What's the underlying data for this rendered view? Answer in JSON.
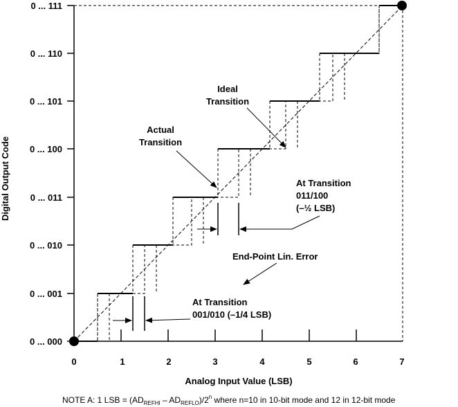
{
  "axes": {
    "x_label": "Analog Input Value (LSB)",
    "y_label": "Digital Output Code",
    "x_ticks": [
      "0",
      "1",
      "2",
      "3",
      "4",
      "5",
      "6",
      "7"
    ],
    "y_ticks": [
      "0 ... 000",
      "0 ... 001",
      "0 ... 010",
      "0 ... 011",
      "0 ... 100",
      "0 ... 101",
      "0 ... 110",
      "0 ... 111"
    ]
  },
  "annotations": {
    "ideal_line1": "Ideal",
    "ideal_line2": "Transition",
    "actual_line1": "Actual",
    "actual_line2": "Transition",
    "at_trans_011_line1": "At Transition",
    "at_trans_011_line2": "011/100",
    "at_trans_011_line3": "(–½ LSB)",
    "endpoint": "End-Point Lin. Error",
    "at_trans_001_line1": "At Transition",
    "at_trans_001_line2": "001/010 (–1/4 LSB)"
  },
  "note": {
    "prefix": "NOTE A:  1 LSB = (AD",
    "sub1": "REFHI",
    "mid": " – AD",
    "sub2": "REFLO",
    "mid2": ")/2",
    "sup": "n",
    "suffix": " where n=10 in 10-bit mode and 12 in 12-bit mode"
  }
}
